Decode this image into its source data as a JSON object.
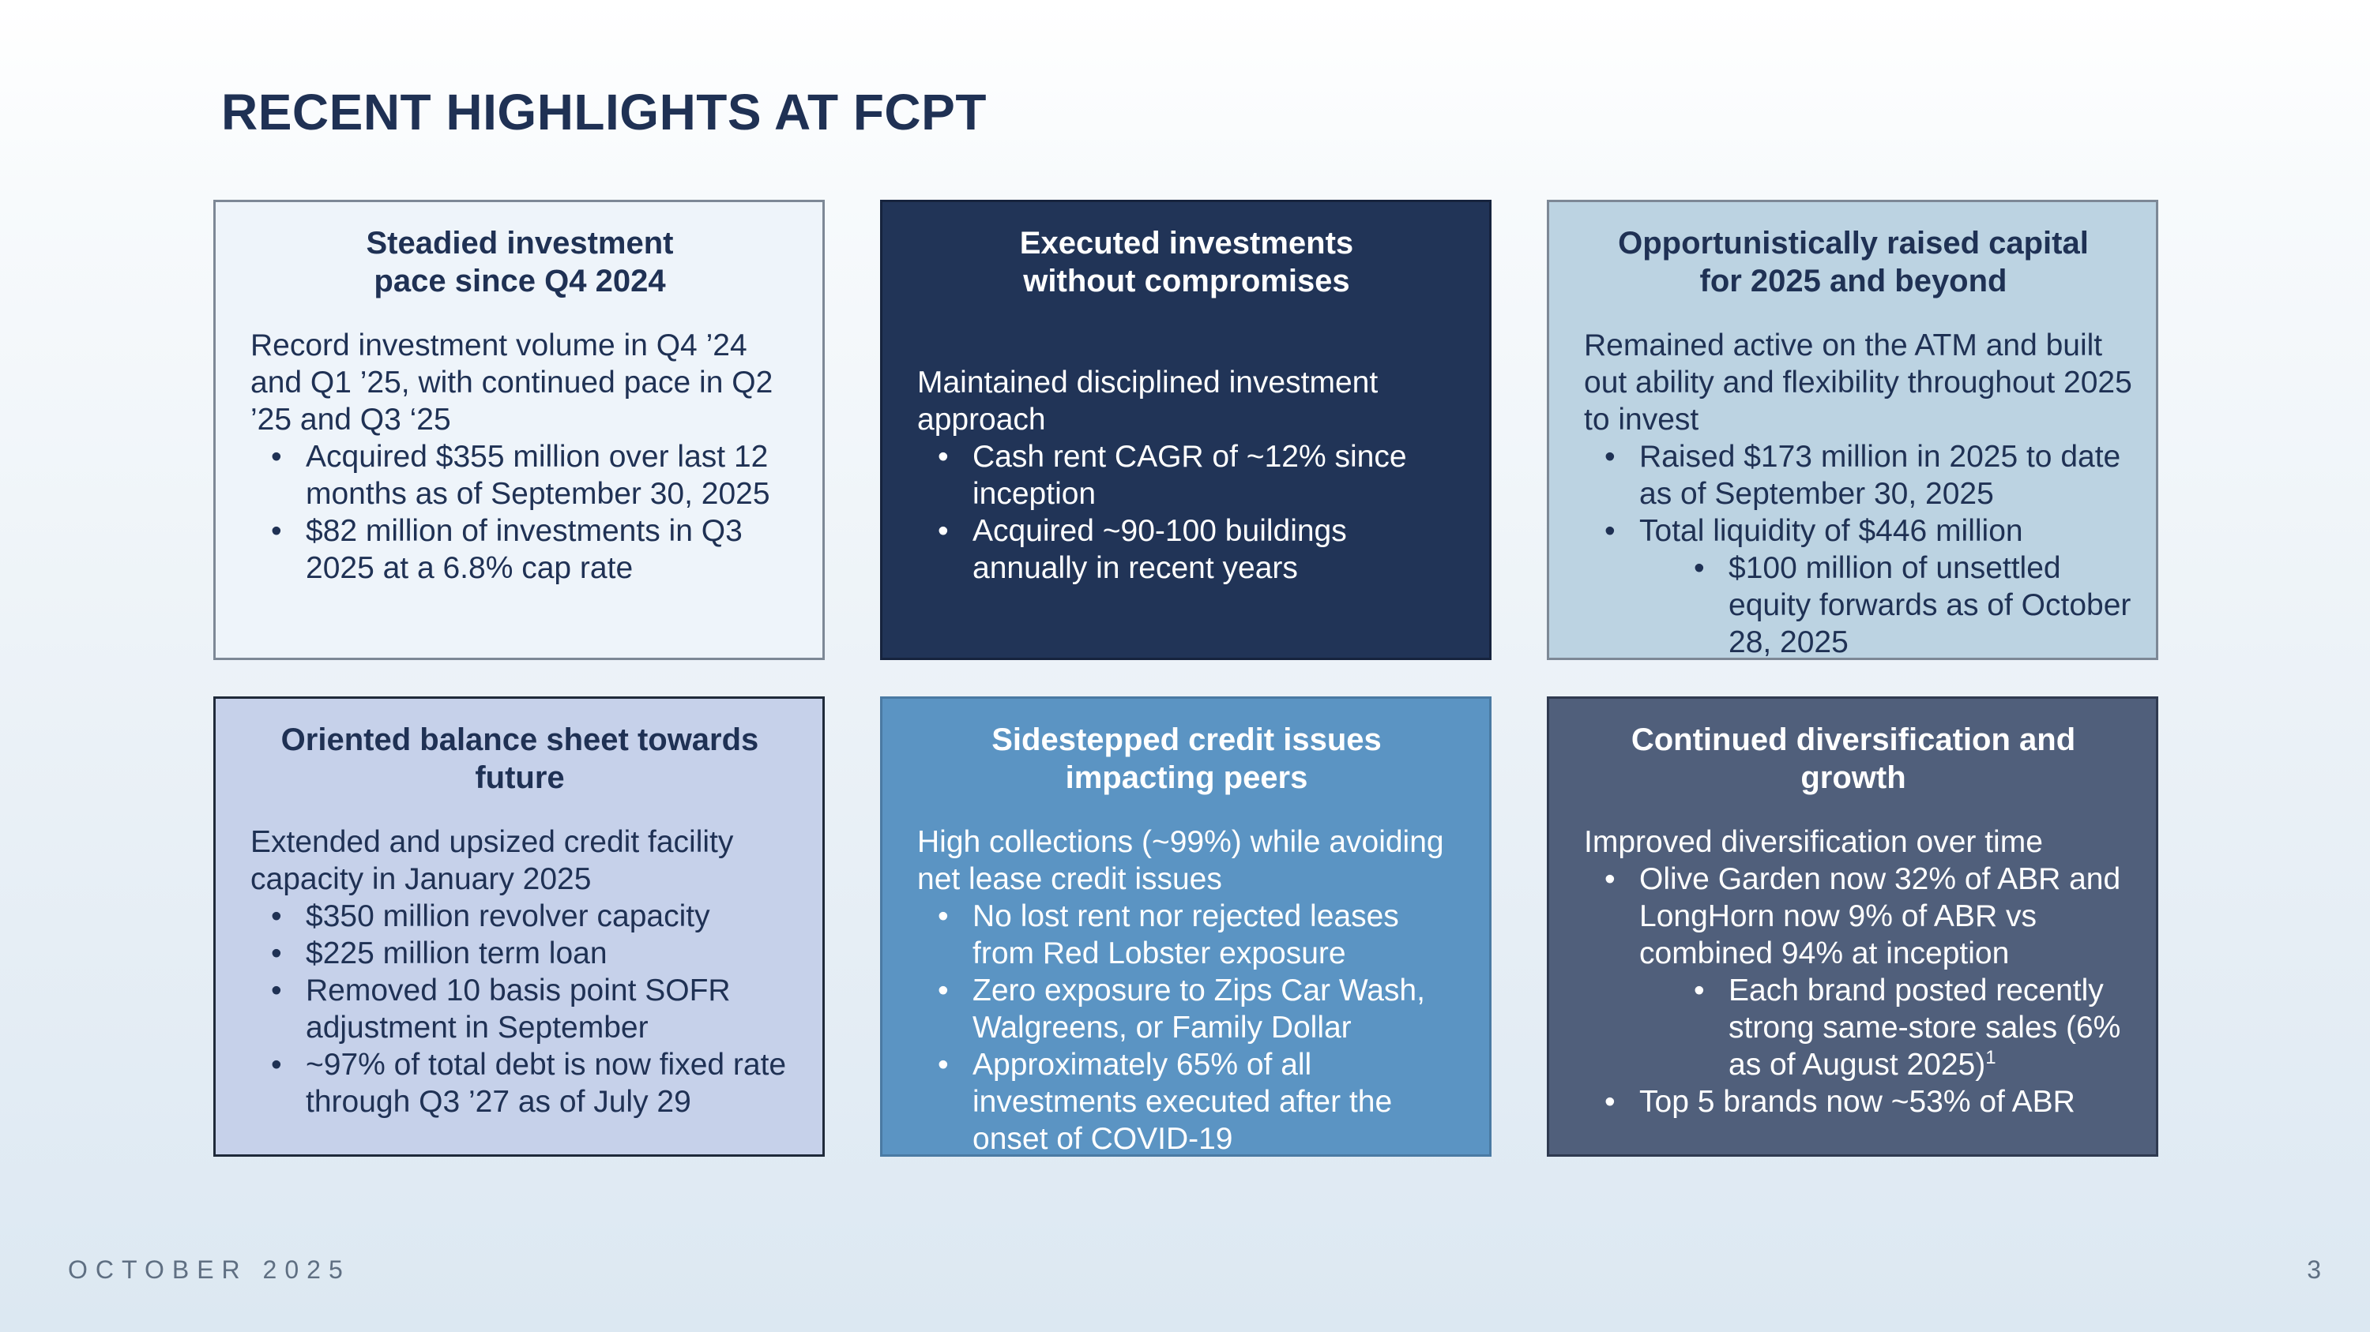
{
  "title": "RECENT HIGHLIGHTS AT FCPT",
  "boxes": [
    {
      "heading_line1": "Steadied investment",
      "heading_line2": "pace since Q4 2024",
      "intro": "Record investment volume in Q4 ’24 and Q1 ’25, with continued pace in Q2 ’25 and Q3 ‘25",
      "bullets": [
        "Acquired $355 million over last 12 months as of September 30, 2025",
        "$82 million of investments in Q3 2025 at a 6.8% cap rate"
      ]
    },
    {
      "heading_line1": "Executed investments",
      "heading_line2": "without compromises",
      "intro": "Maintained disciplined investment approach",
      "bullets": [
        "Cash rent CAGR of ~12% since inception",
        "Acquired ~90-100 buildings annually in recent years"
      ]
    },
    {
      "heading_line1": "Opportunistically raised capital",
      "heading_line2": "for 2025 and beyond",
      "intro": "Remained active on the ATM and built out ability and flexibility throughout 2025 to invest",
      "bullets": [
        "Raised $173 million in 2025 to date as of September 30, 2025",
        "Total liquidity of $446 million"
      ],
      "sub_bullets": [
        "$100 million of unsettled equity forwards as of October 28, 2025"
      ]
    },
    {
      "heading_line1": "Oriented balance sheet towards",
      "heading_line2": "future",
      "intro": "Extended and upsized credit facility capacity in January 2025",
      "bullets": [
        "$350 million revolver capacity",
        "$225 million term loan",
        "Removed 10 basis point SOFR adjustment in September",
        "~97% of total debt is now fixed rate through Q3 ’27 as of July 29"
      ]
    },
    {
      "heading_line1": "Sidestepped credit issues",
      "heading_line2": "impacting peers",
      "intro": "High collections (~99%) while avoiding net lease credit issues",
      "bullets": [
        "No lost rent nor rejected leases from Red Lobster exposure",
        "Zero exposure to Zips Car Wash, Walgreens, or Family Dollar",
        "Approximately 65% of all investments executed after the onset of COVID-19"
      ]
    },
    {
      "heading_line1": "Continued diversification and",
      "heading_line2": "growth",
      "intro": "Improved diversification over time",
      "bullets": [
        "Olive Garden now 32% of ABR and LongHorn now 9% of ABR vs combined 94% at inception",
        "Top 5 brands now ~53% of ABR"
      ],
      "sub_bullets": [
        "Each brand posted recently strong same-store sales (6% as of August 2025)"
      ],
      "footnote_marker": "1"
    }
  ],
  "footer": {
    "date": "OCTOBER 2025",
    "page_number": "3"
  }
}
